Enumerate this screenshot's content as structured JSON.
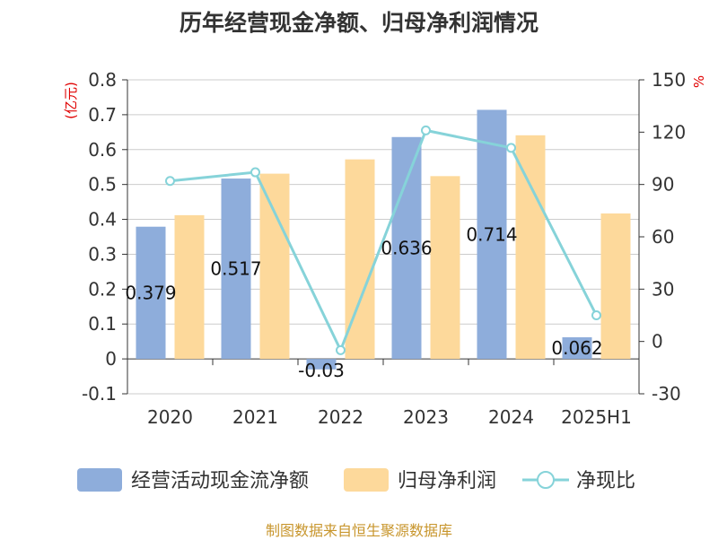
{
  "chart_data": {
    "type": "bar",
    "title": "历年经营现金净额、归母净利润情况",
    "categories": [
      "2020",
      "2021",
      "2022",
      "2023",
      "2024",
      "2025H1"
    ],
    "series": [
      {
        "name": "经营活动现金流净额",
        "type": "bar",
        "axis": "left",
        "color": "#8eaddb",
        "values": [
          0.379,
          0.517,
          -0.03,
          0.636,
          0.714,
          0.062
        ],
        "labels": [
          "0.379",
          "0.517",
          "-0.03",
          "0.636",
          "0.714",
          "0.062"
        ]
      },
      {
        "name": "归母净利润",
        "type": "bar",
        "axis": "left",
        "color": "#fdd99b",
        "values": [
          0.412,
          0.531,
          0.572,
          0.524,
          0.641,
          0.417
        ]
      },
      {
        "name": "净现比",
        "type": "line",
        "axis": "right",
        "color": "#86d3d9",
        "values": [
          92,
          97,
          -5,
          121,
          111,
          15
        ]
      }
    ],
    "y_left": {
      "unit_label": "(亿元)",
      "min": -0.1,
      "max": 0.8,
      "ticks": [
        "-0.1",
        "0",
        "0.1",
        "0.2",
        "0.3",
        "0.4",
        "0.5",
        "0.6",
        "0.7",
        "0.8"
      ]
    },
    "y_right": {
      "unit_label": "%",
      "min": -30,
      "max": 150,
      "ticks": [
        "-30",
        "0",
        "30",
        "60",
        "90",
        "120",
        "150"
      ]
    },
    "grid": true,
    "legend": {
      "placement": "bottom"
    },
    "source": "制图数据来自恒生聚源数据库"
  }
}
